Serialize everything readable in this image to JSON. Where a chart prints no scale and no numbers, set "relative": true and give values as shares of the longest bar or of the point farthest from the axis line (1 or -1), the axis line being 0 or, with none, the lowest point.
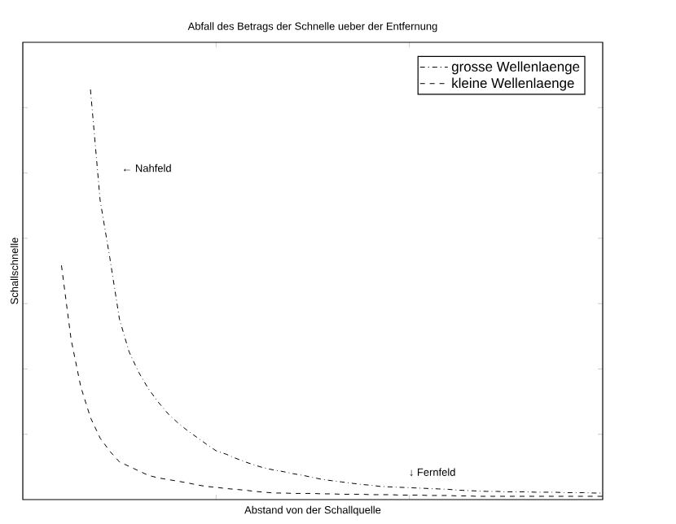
{
  "chart_data": {
    "type": "line",
    "title": "Abfall des Betrags der Schnelle ueber der Entfernung",
    "xlabel": "Abstand von der Schallquelle",
    "ylabel": "Schallschnelle",
    "relative": true,
    "legend": "top right",
    "categories": [
      null,
      null,
      null,
      null,
      null,
      null,
      null,
      null,
      null,
      null,
      null,
      null,
      null,
      null,
      null,
      null,
      null,
      null,
      null,
      null,
      null,
      null,
      null,
      null,
      null,
      null,
      null,
      null,
      null,
      null,
      null,
      null,
      null,
      null,
      null,
      null,
      null,
      null,
      null,
      null,
      null,
      null,
      null,
      null,
      null,
      null,
      null,
      null,
      null,
      null,
      null,
      null,
      null,
      null,
      null,
      null,
      null,
      null,
      null,
      null,
      null
    ],
    "annotations": [
      "← Nahfeld",
      "↓ Fernfeld"
    ],
    "series": [
      {
        "name": "grosse Wellenlaenge",
        "color": "#000000",
        "line_style": "dashdot",
        "values": [
          null,
          null,
          null,
          null,
          null,
          null,
          null,
          1.0,
          0.73,
          0.59,
          0.44,
          0.36,
          0.31,
          0.27,
          0.238,
          0.21,
          0.188,
          0.169,
          0.152,
          0.135,
          0.119,
          0.111,
          0.101,
          0.092,
          0.084,
          0.077,
          0.072,
          0.068,
          0.063,
          0.059,
          0.054,
          0.049,
          0.046,
          0.043,
          0.04,
          0.037,
          0.035,
          0.032,
          0.031,
          0.03,
          0.029,
          0.028,
          0.027,
          0.026,
          0.025,
          0.023,
          0.022,
          0.021,
          0.02,
          0.02,
          0.019,
          0.019,
          0.019,
          0.018,
          0.018,
          0.018,
          0.017,
          0.017,
          0.017,
          0.016,
          0.016
        ]
      },
      {
        "name": "kleine Wellenlaenge",
        "color": "#000000",
        "line_style": "dashed",
        "values": [
          null,
          null,
          null,
          null,
          0.571,
          0.39,
          0.275,
          0.2,
          0.15,
          0.118,
          0.092,
          0.081,
          0.07,
          0.059,
          0.053,
          0.049,
          0.045,
          0.041,
          0.036,
          0.032,
          0.03,
          0.027,
          0.025,
          0.023,
          0.02,
          0.018,
          0.016,
          0.016,
          0.015,
          0.015,
          0.015,
          0.014,
          0.014,
          0.013,
          0.013,
          0.013,
          0.012,
          0.012,
          0.012,
          0.011,
          0.011,
          0.011,
          0.01,
          0.01,
          0.01,
          0.009,
          0.009,
          0.008,
          0.008,
          0.008,
          0.008,
          0.008,
          0.008,
          0.008,
          0.008,
          0.008,
          0.008,
          0.008,
          0.008,
          0.008,
          0.008
        ]
      }
    ]
  }
}
